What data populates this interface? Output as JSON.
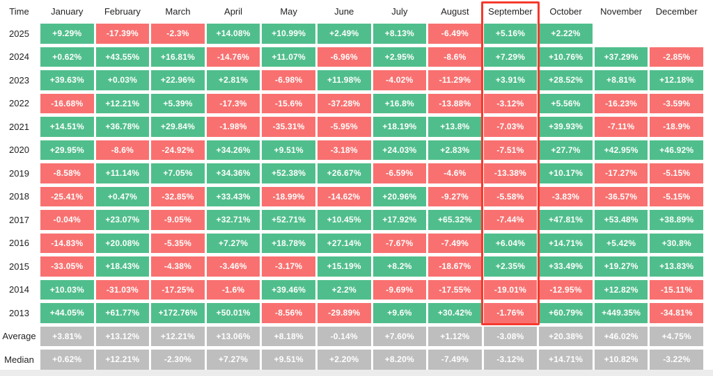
{
  "colors": {
    "background": "#ffffff",
    "positive": "#50be8c",
    "negative": "#f87170",
    "neutral": "#bebebe",
    "highlight_border": "#f5392d",
    "cell_text": "#ffffff",
    "label_text": "#222222",
    "bottom_strip": "#ececec"
  },
  "chart_data": {
    "type": "heatmap",
    "unit": "%",
    "columns": [
      "Time",
      "January",
      "February",
      "March",
      "April",
      "May",
      "June",
      "July",
      "August",
      "September",
      "October",
      "November",
      "December"
    ],
    "highlighted_column": "September",
    "legend_position": "none",
    "grid": false,
    "rows": [
      {
        "label": "2025",
        "type": "year",
        "values": [
          "+9.29%",
          "-17.39%",
          "-2.3%",
          "+14.08%",
          "+10.99%",
          "+2.49%",
          "+8.13%",
          "-6.49%",
          "+5.16%",
          "+2.22%",
          null,
          null
        ]
      },
      {
        "label": "2024",
        "type": "year",
        "values": [
          "+0.62%",
          "+43.55%",
          "+16.81%",
          "-14.76%",
          "+11.07%",
          "-6.96%",
          "+2.95%",
          "-8.6%",
          "+7.29%",
          "+10.76%",
          "+37.29%",
          "-2.85%"
        ]
      },
      {
        "label": "2023",
        "type": "year",
        "values": [
          "+39.63%",
          "+0.03%",
          "+22.96%",
          "+2.81%",
          "-6.98%",
          "+11.98%",
          "-4.02%",
          "-11.29%",
          "+3.91%",
          "+28.52%",
          "+8.81%",
          "+12.18%"
        ]
      },
      {
        "label": "2022",
        "type": "year",
        "values": [
          "-16.68%",
          "+12.21%",
          "+5.39%",
          "-17.3%",
          "-15.6%",
          "-37.28%",
          "+16.8%",
          "-13.88%",
          "-3.12%",
          "+5.56%",
          "-16.23%",
          "-3.59%"
        ]
      },
      {
        "label": "2021",
        "type": "year",
        "values": [
          "+14.51%",
          "+36.78%",
          "+29.84%",
          "-1.98%",
          "-35.31%",
          "-5.95%",
          "+18.19%",
          "+13.8%",
          "-7.03%",
          "+39.93%",
          "-7.11%",
          "-18.9%"
        ]
      },
      {
        "label": "2020",
        "type": "year",
        "values": [
          "+29.95%",
          "-8.6%",
          "-24.92%",
          "+34.26%",
          "+9.51%",
          "-3.18%",
          "+24.03%",
          "+2.83%",
          "-7.51%",
          "+27.7%",
          "+42.95%",
          "+46.92%"
        ]
      },
      {
        "label": "2019",
        "type": "year",
        "values": [
          "-8.58%",
          "+11.14%",
          "+7.05%",
          "+34.36%",
          "+52.38%",
          "+26.67%",
          "-6.59%",
          "-4.6%",
          "-13.38%",
          "+10.17%",
          "-17.27%",
          "-5.15%"
        ]
      },
      {
        "label": "2018",
        "type": "year",
        "values": [
          "-25.41%",
          "+0.47%",
          "-32.85%",
          "+33.43%",
          "-18.99%",
          "-14.62%",
          "+20.96%",
          "-9.27%",
          "-5.58%",
          "-3.83%",
          "-36.57%",
          "-5.15%"
        ]
      },
      {
        "label": "2017",
        "type": "year",
        "values": [
          "-0.04%",
          "+23.07%",
          "-9.05%",
          "+32.71%",
          "+52.71%",
          "+10.45%",
          "+17.92%",
          "+65.32%",
          "-7.44%",
          "+47.81%",
          "+53.48%",
          "+38.89%"
        ]
      },
      {
        "label": "2016",
        "type": "year",
        "values": [
          "-14.83%",
          "+20.08%",
          "-5.35%",
          "+7.27%",
          "+18.78%",
          "+27.14%",
          "-7.67%",
          "-7.49%",
          "+6.04%",
          "+14.71%",
          "+5.42%",
          "+30.8%"
        ]
      },
      {
        "label": "2015",
        "type": "year",
        "values": [
          "-33.05%",
          "+18.43%",
          "-4.38%",
          "-3.46%",
          "-3.17%",
          "+15.19%",
          "+8.2%",
          "-18.67%",
          "+2.35%",
          "+33.49%",
          "+19.27%",
          "+13.83%"
        ]
      },
      {
        "label": "2014",
        "type": "year",
        "values": [
          "+10.03%",
          "-31.03%",
          "-17.25%",
          "-1.6%",
          "+39.46%",
          "+2.2%",
          "-9.69%",
          "-17.55%",
          "-19.01%",
          "-12.95%",
          "+12.82%",
          "-15.11%"
        ]
      },
      {
        "label": "2013",
        "type": "year",
        "values": [
          "+44.05%",
          "+61.77%",
          "+172.76%",
          "+50.01%",
          "-8.56%",
          "-29.89%",
          "+9.6%",
          "+30.42%",
          "-1.76%",
          "+60.79%",
          "+449.35%",
          "-34.81%"
        ]
      },
      {
        "label": "Average",
        "type": "summary",
        "values": [
          "+3.81%",
          "+13.12%",
          "+12.21%",
          "+13.06%",
          "+8.18%",
          "-0.14%",
          "+7.60%",
          "+1.12%",
          "-3.08%",
          "+20.38%",
          "+46.02%",
          "+4.75%"
        ]
      },
      {
        "label": "Median",
        "type": "summary",
        "values": [
          "+0.62%",
          "+12.21%",
          "-2.30%",
          "+7.27%",
          "+9.51%",
          "+2.20%",
          "+8.20%",
          "-7.49%",
          "-3.12%",
          "+14.71%",
          "+10.82%",
          "-3.22%"
        ]
      }
    ]
  }
}
